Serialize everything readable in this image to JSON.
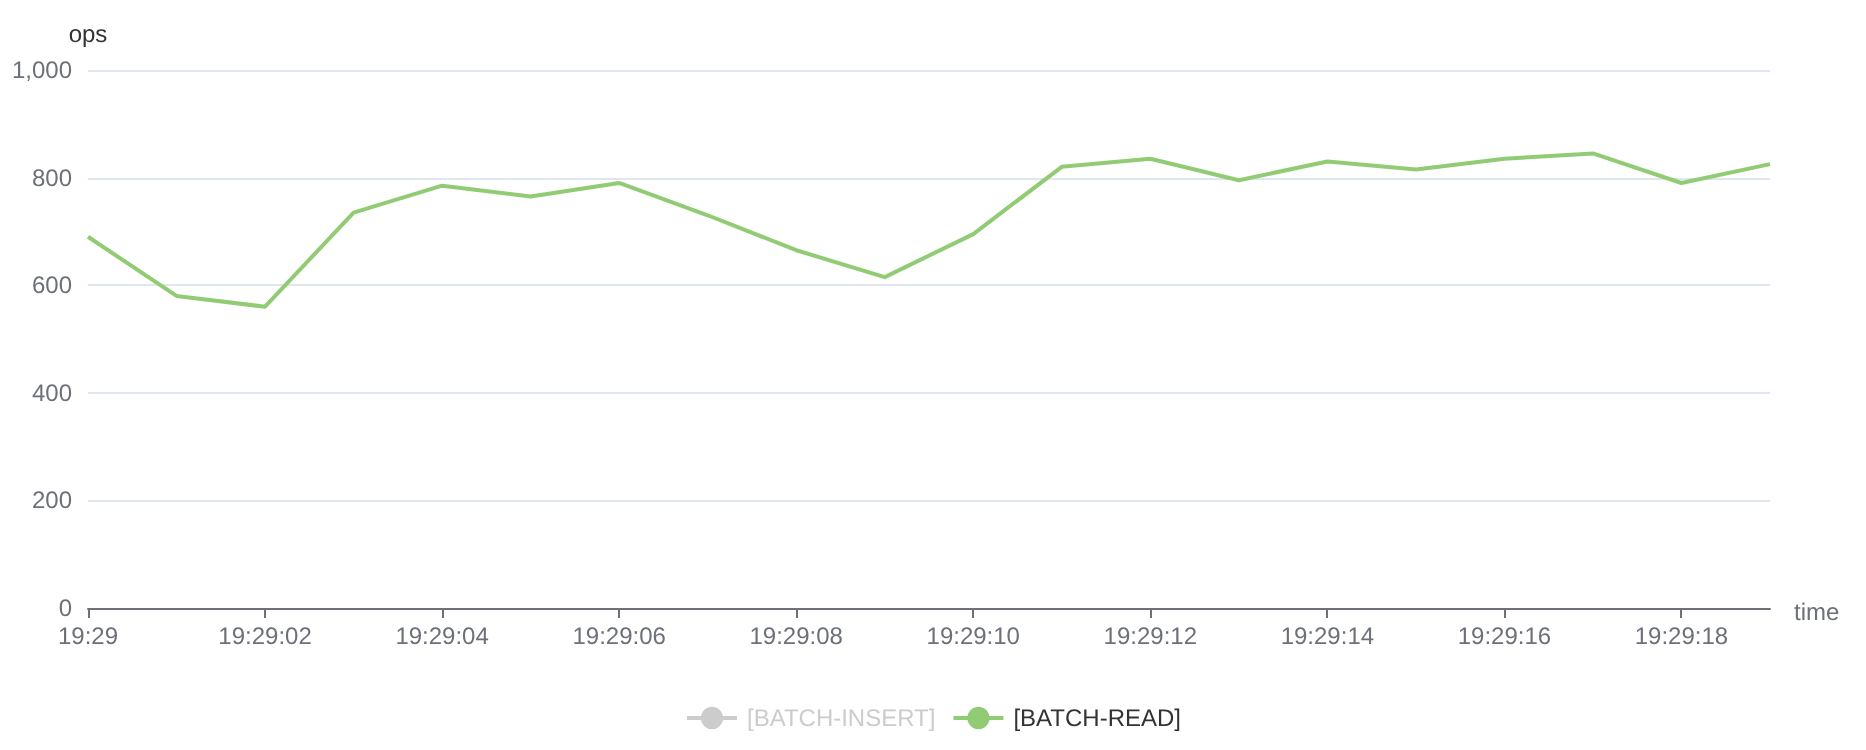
{
  "chart_data": {
    "type": "line",
    "xlabel": "time",
    "ylabel": "ops",
    "categories": [
      "19:29",
      null,
      "19:29:02",
      null,
      "19:29:04",
      null,
      "19:29:06",
      null,
      "19:29:08",
      null,
      "19:29:10",
      null,
      "19:29:12",
      null,
      "19:29:14",
      null,
      "19:29:16",
      null,
      "19:29:18",
      null
    ],
    "series": [
      {
        "name": "[BATCH-INSERT]",
        "color": "#cccccc",
        "values": [
          null,
          null,
          null,
          null,
          null,
          null,
          null,
          null,
          null,
          null,
          null,
          null,
          null,
          null,
          null,
          null,
          null,
          null,
          null,
          null
        ]
      },
      {
        "name": "[BATCH-READ]",
        "color": "#91cc75",
        "values": [
          690,
          580,
          560,
          735,
          785,
          765,
          790,
          730,
          665,
          615,
          695,
          820,
          835,
          795,
          830,
          815,
          835,
          845,
          790,
          825
        ]
      }
    ],
    "ylim": [
      0,
      1000
    ],
    "yticks": [
      0,
      200,
      400,
      600,
      800,
      {
        "value": 1000,
        "label": "1,000"
      }
    ],
    "grid": "y",
    "legend": "bottom",
    "marker": "none"
  }
}
